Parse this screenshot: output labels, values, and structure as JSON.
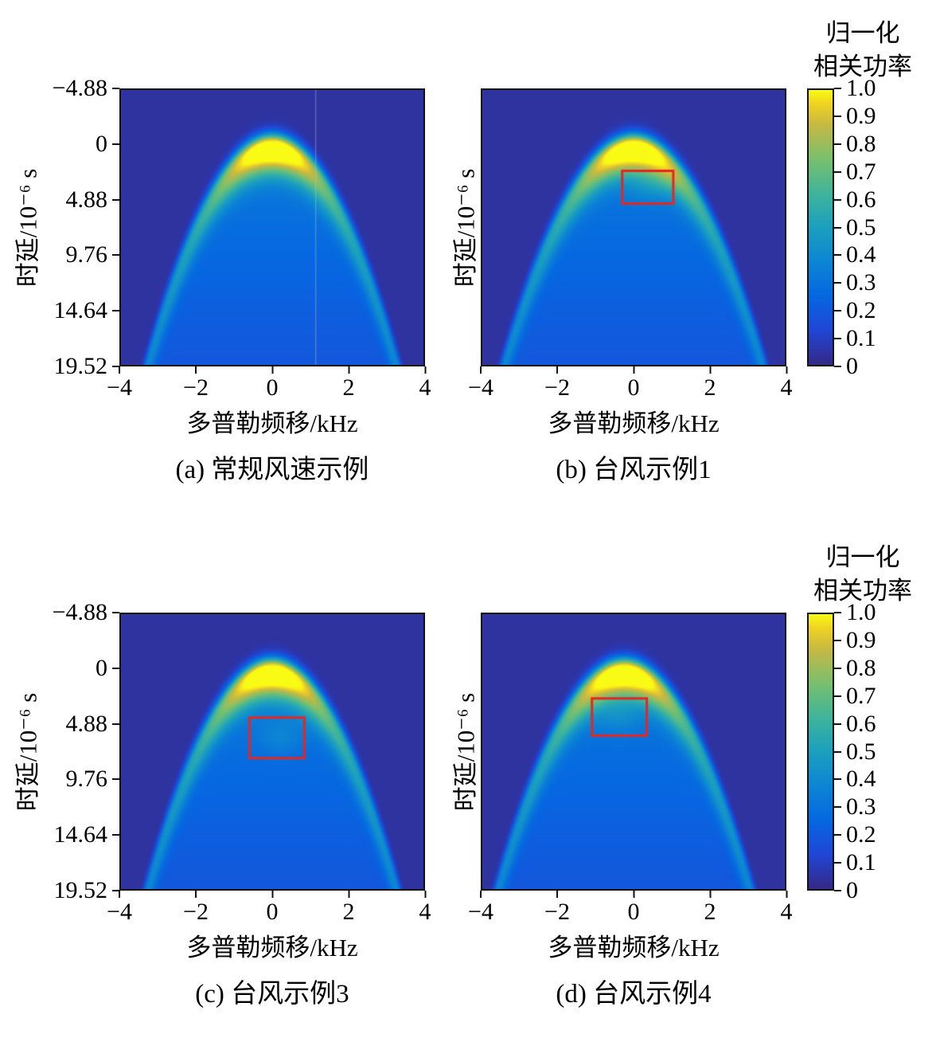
{
  "chart_data": {
    "type": "heatmap",
    "description": "2x2 grid of delay-Doppler normalized correlation power maps",
    "xlabel": "多普勒频移/kHz",
    "ylabel": "时延/10⁻⁶ s",
    "x_range": [
      -4,
      4
    ],
    "y_range": [
      -4.88,
      19.52
    ],
    "x_ticks": [
      {
        "v": -4,
        "label": "−4"
      },
      {
        "v": -2,
        "label": "−2"
      },
      {
        "v": 0,
        "label": "0"
      },
      {
        "v": 2,
        "label": "2"
      },
      {
        "v": 4,
        "label": "4"
      }
    ],
    "y_ticks": [
      {
        "v": -4.88,
        "label": "−4.88"
      },
      {
        "v": 0,
        "label": "0"
      },
      {
        "v": 4.88,
        "label": "4.88"
      },
      {
        "v": 9.76,
        "label": "9.76"
      },
      {
        "v": 14.64,
        "label": "14.64"
      },
      {
        "v": 19.52,
        "label": "19.52"
      }
    ],
    "colorbar": {
      "title_lines": [
        "归一化",
        "相关功率"
      ],
      "range": [
        0,
        1
      ],
      "ticks": [
        {
          "v": 1.0,
          "label": "1.0"
        },
        {
          "v": 0.9,
          "label": "0.9"
        },
        {
          "v": 0.8,
          "label": "0.8"
        },
        {
          "v": 0.7,
          "label": "0.7"
        },
        {
          "v": 0.6,
          "label": "0.6"
        },
        {
          "v": 0.5,
          "label": "0.5"
        },
        {
          "v": 0.4,
          "label": "0.4"
        },
        {
          "v": 0.3,
          "label": "0.3"
        },
        {
          "v": 0.2,
          "label": "0.2"
        },
        {
          "v": 0.1,
          "label": "0.1"
        },
        {
          "v": 0,
          "label": "0"
        }
      ]
    },
    "colormap_stops": [
      {
        "pos": 0.0,
        "color": "#352a87"
      },
      {
        "pos": 0.125,
        "color": "#2146d6"
      },
      {
        "pos": 0.25,
        "color": "#0668e1"
      },
      {
        "pos": 0.375,
        "color": "#0d86d4"
      },
      {
        "pos": 0.5,
        "color": "#1ca0bf"
      },
      {
        "pos": 0.625,
        "color": "#40b59c"
      },
      {
        "pos": 0.75,
        "color": "#7ac06e"
      },
      {
        "pos": 0.875,
        "color": "#c8b943"
      },
      {
        "pos": 0.95,
        "color": "#f0d324"
      },
      {
        "pos": 1.0,
        "color": "#f9fb14"
      }
    ],
    "annotation_color": "#e8251f",
    "vline_color": "rgba(190,195,210,0.35)",
    "background_value": 0.04,
    "panels": [
      {
        "id": "a",
        "caption": "(a) 常规风速示例",
        "peak_fd": 0,
        "arc_coef": 1.75,
        "red_box": null,
        "blob": null,
        "vline": {
          "fd": 1.15
        }
      },
      {
        "id": "b",
        "caption": "(b) 台风示例1",
        "peak_fd": 0,
        "arc_coef": 1.62,
        "red_box": {
          "x0": -0.3,
          "x1": 1.05,
          "y0": 2.3,
          "y1": 5.2
        },
        "blob": {
          "fd": 0.45,
          "tau": 3.6,
          "amp": 0.1
        },
        "vline": null
      },
      {
        "id": "c",
        "caption": "(c) 台风示例3",
        "peak_fd": 0,
        "arc_coef": 1.75,
        "red_box": {
          "x0": -0.6,
          "x1": 0.85,
          "y0": 4.3,
          "y1": 7.9
        },
        "blob": {
          "fd": 0.2,
          "tau": 6.0,
          "amp": 0.09
        },
        "vline": null
      },
      {
        "id": "d",
        "caption": "(d) 台风示例4",
        "peak_fd": -0.25,
        "arc_coef": 1.7,
        "red_box": {
          "x0": -1.1,
          "x1": 0.35,
          "y0": 2.6,
          "y1": 5.9
        },
        "blob": {
          "fd": -0.4,
          "tau": 4.2,
          "amp": 0.1
        },
        "vline": null
      }
    ]
  }
}
